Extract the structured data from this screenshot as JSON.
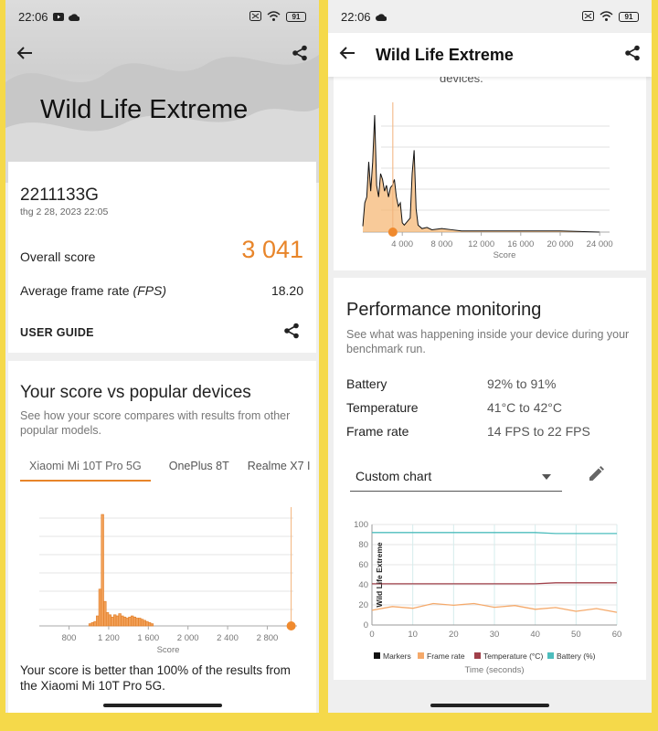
{
  "status": {
    "time": "22:06",
    "battery": "91"
  },
  "left": {
    "hero_title": "Wild Life Extreme",
    "device_model": "2211133G",
    "device_date": "thg 2 28, 2023 22:05",
    "overall_label": "Overall score",
    "overall_value": "3 041",
    "fps_label_prefix": "Average frame rate ",
    "fps_label_italic": "(FPS)",
    "fps_value": "18.20",
    "user_guide": "USER GUIDE",
    "compare_title": "Your score vs popular devices",
    "compare_desc": "See how your score compares with results from other popular models.",
    "tabs": [
      "Xiaomi Mi 10T Pro 5G",
      "OnePlus 8T",
      "Realme X7 I"
    ],
    "xticks": [
      "800",
      "1 200",
      "1 600",
      "2 000",
      "2 400",
      "2 800"
    ],
    "xlabel": "Score",
    "result_text": "Your score is better than 100% of the results from the Xiaomi Mi 10T Pro 5G."
  },
  "right": {
    "appbar_title": "Wild Life Extreme",
    "cut_text": "devices.",
    "xticks": [
      "4 000",
      "8 000",
      "12 000",
      "16 000",
      "20 000",
      "24 000"
    ],
    "xlabel": "Score",
    "perf_title": "Performance monitoring",
    "perf_desc": "See what was happening inside your device during your benchmark run.",
    "metrics": [
      {
        "label": "Battery",
        "value": "92% to 91%"
      },
      {
        "label": "Temperature",
        "value": "41°C to 42°C"
      },
      {
        "label": "Frame rate",
        "value": "14 FPS to 22 FPS"
      }
    ],
    "dropdown_value": "Custom chart",
    "chart_yticks": [
      "100",
      "80",
      "60",
      "40",
      "20",
      "0"
    ],
    "chart_xticks": [
      "0",
      "10",
      "20",
      "30",
      "40",
      "50",
      "60"
    ],
    "chart_side_label": "Wild Life Extreme",
    "chart_xlabel": "Time (seconds)",
    "legend": [
      "Markers",
      "Frame rate",
      "Temperature (°C)",
      "Battery (%)"
    ]
  },
  "colors": {
    "orange": "#e8852a",
    "battery": "#4dbdbd",
    "temperature": "#a0404a",
    "framerate": "#f5a96a",
    "frame": "#f5d94a"
  },
  "chart_data": [
    {
      "type": "bar",
      "title": "",
      "xlabel": "Score",
      "ylabel": "",
      "xlim": [
        500,
        3100
      ],
      "categories": [
        "1000",
        "1025",
        "1050",
        "1075",
        "1100",
        "1125",
        "1150",
        "1175",
        "1200",
        "1225",
        "1250",
        "1275",
        "1300",
        "1325",
        "1350",
        "1375",
        "1400",
        "1425",
        "1450",
        "1475",
        "1500",
        "1525",
        "1550",
        "1575",
        "1600",
        "1625"
      ],
      "values": [
        2,
        3,
        4,
        9,
        33,
        100,
        22,
        12,
        10,
        8,
        10,
        9,
        11,
        9,
        8,
        7,
        8,
        9,
        8,
        7,
        7,
        6,
        5,
        4,
        3,
        2
      ],
      "marker_score": 3041
    },
    {
      "type": "line",
      "title": "",
      "xlabel": "Score",
      "ylabel": "",
      "xlim": [
        0,
        25000
      ],
      "x": [
        0,
        200,
        400,
        600,
        800,
        1000,
        1200,
        1400,
        1600,
        1800,
        2000,
        2200,
        2400,
        2600,
        2800,
        3000,
        3200,
        3400,
        3600,
        3800,
        4000,
        4200,
        4400,
        4600,
        4800,
        5000,
        5200,
        5400,
        5600,
        6000,
        6500,
        7000,
        8000,
        9000,
        10000,
        12000,
        16000,
        20000,
        24000
      ],
      "values": [
        5,
        25,
        30,
        60,
        35,
        60,
        100,
        40,
        30,
        50,
        45,
        35,
        40,
        30,
        38,
        40,
        45,
        30,
        22,
        25,
        8,
        6,
        8,
        10,
        12,
        50,
        70,
        20,
        6,
        3,
        4,
        2,
        3,
        2,
        1,
        1,
        1,
        1,
        0
      ],
      "marker_score": 3041
    },
    {
      "type": "line",
      "title": "",
      "xlabel": "Time (seconds)",
      "ylabel": "Wild Life Extreme",
      "ylim": [
        0,
        100
      ],
      "x": [
        0,
        5,
        10,
        15,
        20,
        25,
        30,
        35,
        40,
        45,
        50,
        55,
        60
      ],
      "series": [
        {
          "name": "Battery (%)",
          "values": [
            92,
            92,
            92,
            92,
            92,
            92,
            92,
            92,
            92,
            91,
            91,
            91,
            91
          ]
        },
        {
          "name": "Temperature (°C)",
          "values": [
            41,
            41,
            41,
            41,
            41,
            41,
            41,
            41,
            41,
            42,
            42,
            42,
            42
          ]
        },
        {
          "name": "Frame rate",
          "values": [
            16,
            17,
            18,
            20,
            21,
            20,
            19,
            18,
            17,
            16,
            15,
            15,
            14
          ]
        }
      ]
    }
  ]
}
